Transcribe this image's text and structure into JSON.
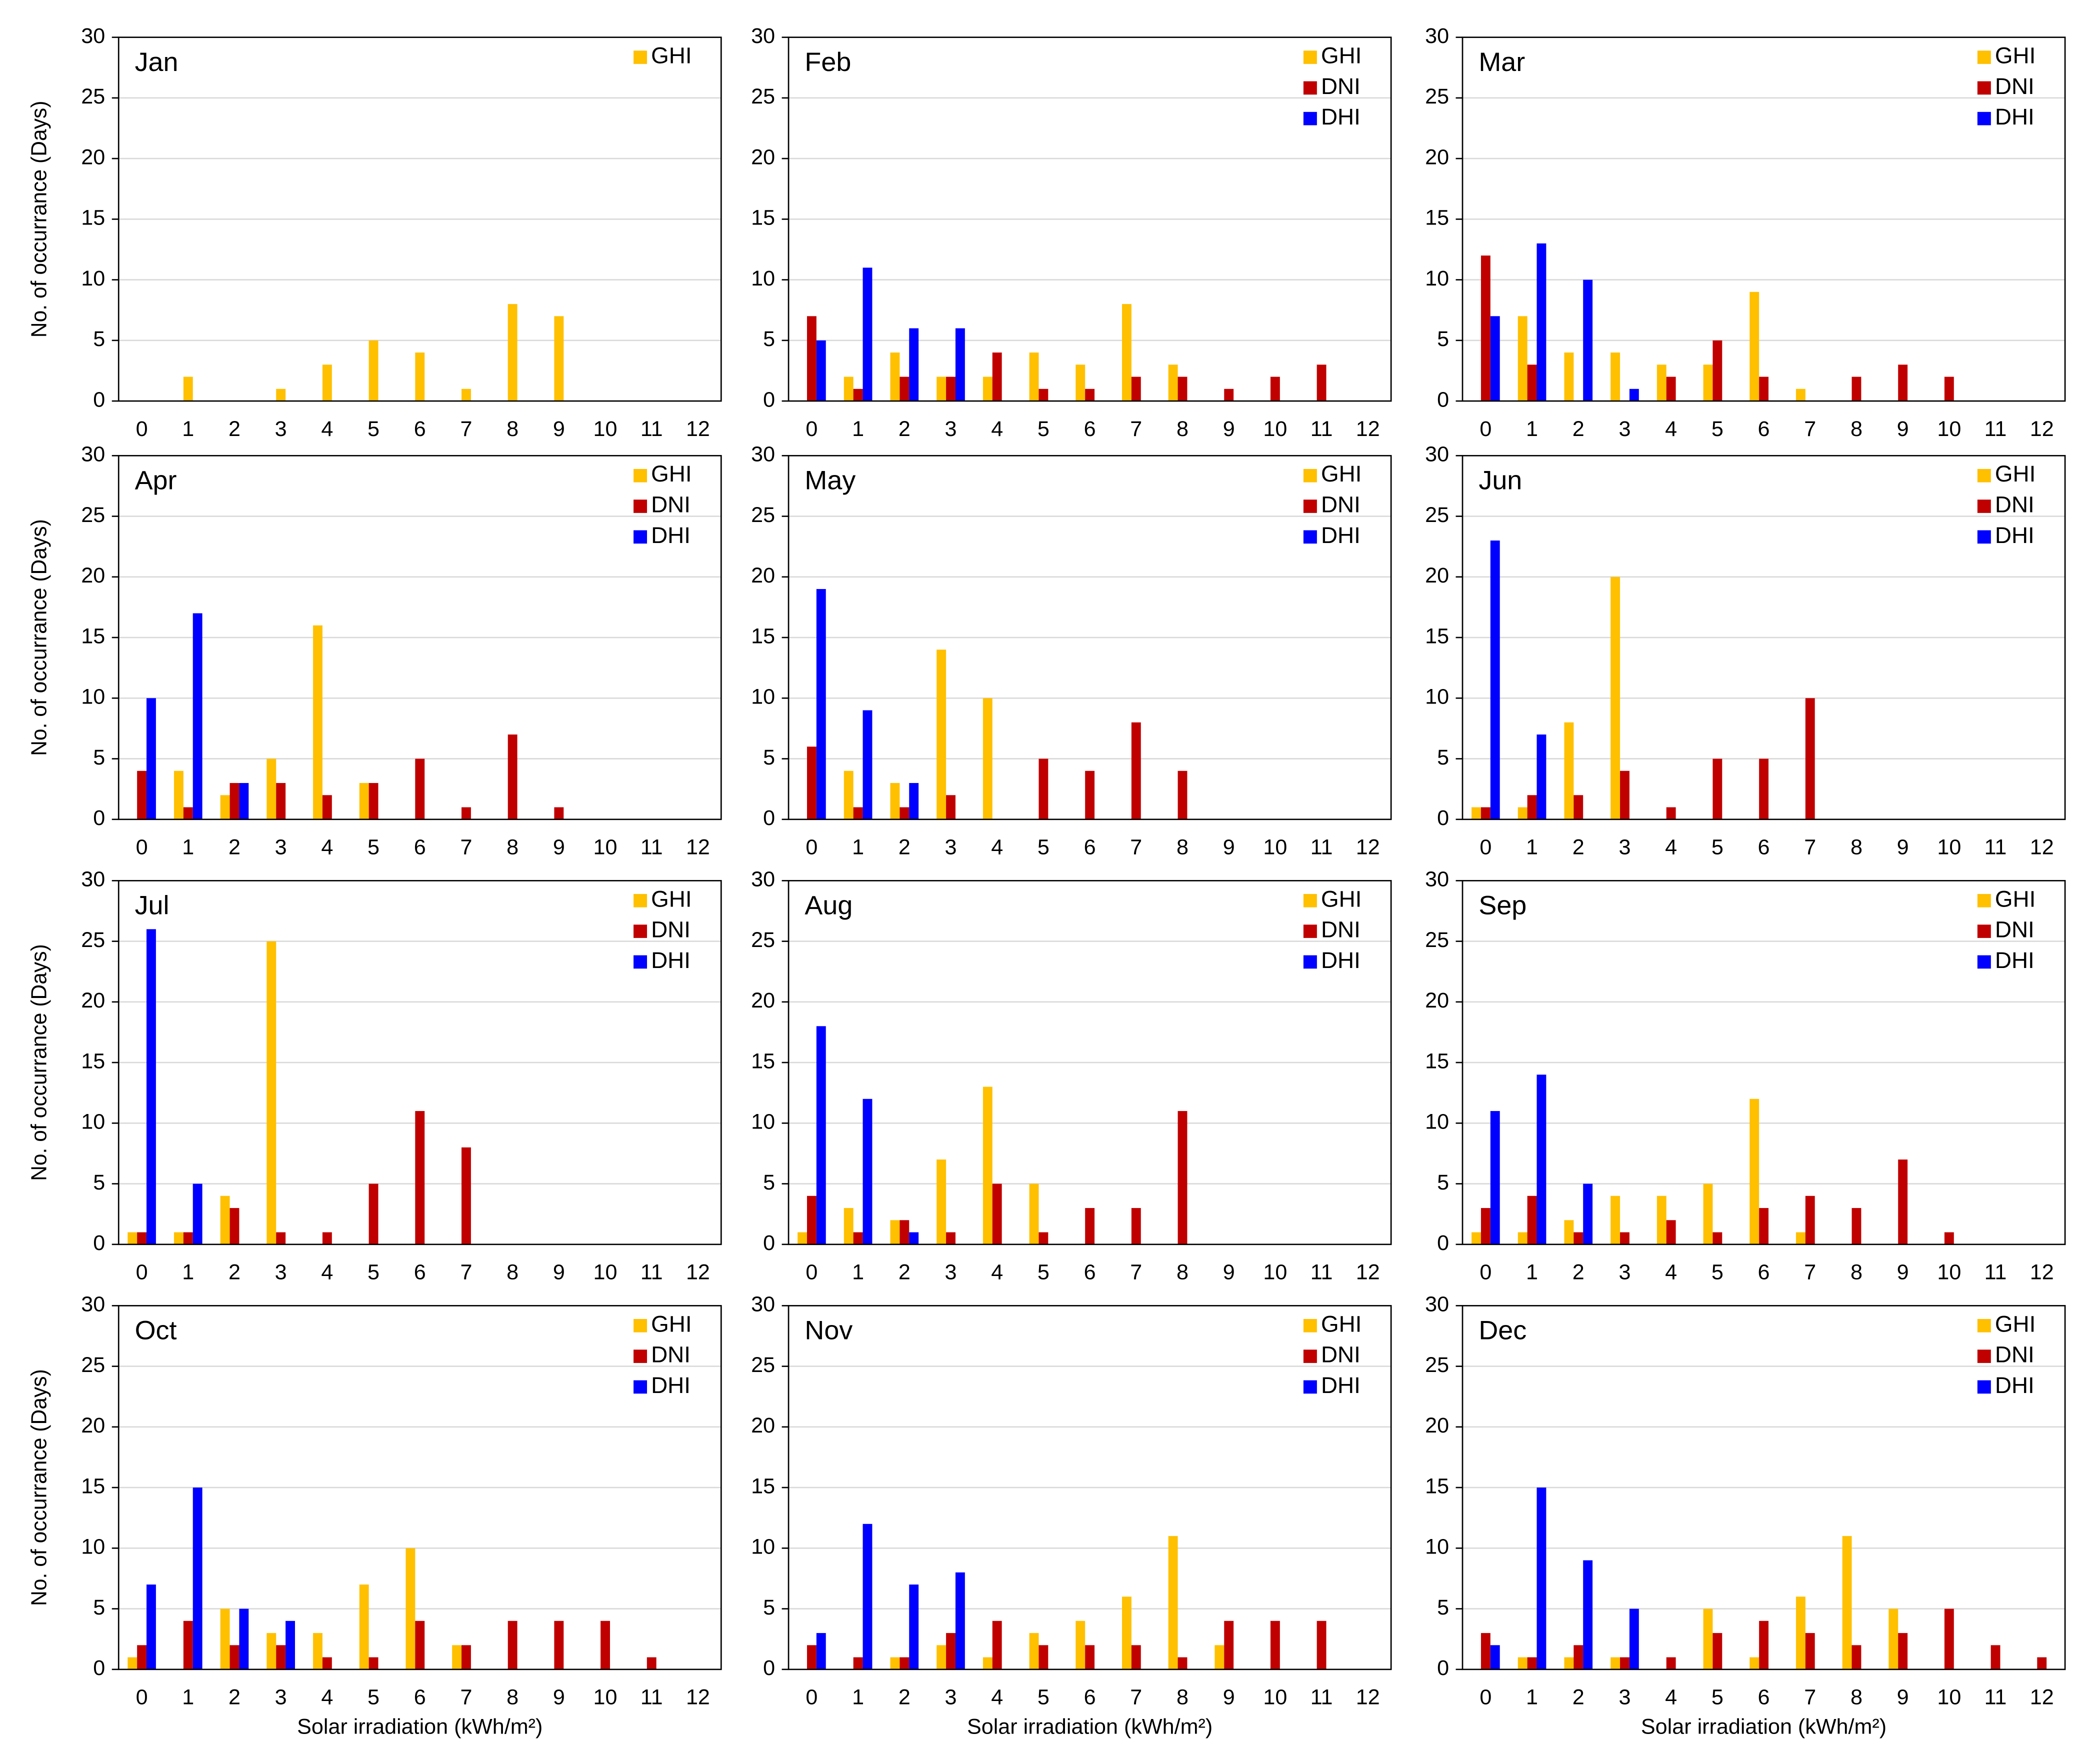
{
  "chart_data": [
    {
      "type": "bar",
      "title": "Jan",
      "categories": [
        0,
        1,
        2,
        3,
        4,
        5,
        6,
        7,
        8,
        9,
        10,
        11,
        12
      ],
      "series": [
        {
          "name": "GHI",
          "color": "#ffc000",
          "values": [
            0,
            2,
            0,
            1,
            3,
            5,
            4,
            1,
            8,
            7,
            0,
            0,
            0
          ]
        }
      ],
      "ylim": [
        0,
        30
      ],
      "yticks": [
        0,
        5,
        10,
        15,
        20,
        25,
        30
      ],
      "grid": true,
      "legend": "upper right",
      "ylabel": "No. of occurrance (Days)"
    },
    {
      "type": "bar",
      "title": "Feb",
      "categories": [
        0,
        1,
        2,
        3,
        4,
        5,
        6,
        7,
        8,
        9,
        10,
        11,
        12
      ],
      "series": [
        {
          "name": "GHI",
          "color": "#ffc000",
          "values": [
            0,
            2,
            4,
            2,
            2,
            4,
            3,
            8,
            3,
            0,
            0,
            0,
            0
          ]
        },
        {
          "name": "DNI",
          "color": "#c00000",
          "values": [
            7,
            1,
            2,
            2,
            4,
            1,
            1,
            2,
            2,
            1,
            2,
            3,
            0
          ]
        },
        {
          "name": "DHI",
          "color": "#0000ff",
          "values": [
            5,
            11,
            6,
            6,
            0,
            0,
            0,
            0,
            0,
            0,
            0,
            0,
            0
          ]
        }
      ],
      "ylim": [
        0,
        30
      ],
      "yticks": [
        0,
        5,
        10,
        15,
        20,
        25,
        30
      ],
      "grid": true,
      "legend": "upper right"
    },
    {
      "type": "bar",
      "title": "Mar",
      "categories": [
        0,
        1,
        2,
        3,
        4,
        5,
        6,
        7,
        8,
        9,
        10,
        11,
        12
      ],
      "series": [
        {
          "name": "GHI",
          "color": "#ffc000",
          "values": [
            0,
            7,
            4,
            4,
            3,
            3,
            9,
            1,
            0,
            0,
            0,
            0,
            0
          ]
        },
        {
          "name": "DNI",
          "color": "#c00000",
          "values": [
            12,
            3,
            0,
            0,
            2,
            5,
            2,
            0,
            2,
            3,
            2,
            0,
            0
          ]
        },
        {
          "name": "DHI",
          "color": "#0000ff",
          "values": [
            7,
            13,
            10,
            1,
            0,
            0,
            0,
            0,
            0,
            0,
            0,
            0,
            0
          ]
        }
      ],
      "ylim": [
        0,
        30
      ],
      "yticks": [
        0,
        5,
        10,
        15,
        20,
        25,
        30
      ],
      "grid": true,
      "legend": "upper right"
    },
    {
      "type": "bar",
      "title": "Apr",
      "categories": [
        0,
        1,
        2,
        3,
        4,
        5,
        6,
        7,
        8,
        9,
        10,
        11,
        12
      ],
      "series": [
        {
          "name": "GHI",
          "color": "#ffc000",
          "values": [
            0,
            4,
            2,
            5,
            16,
            3,
            0,
            0,
            0,
            0,
            0,
            0,
            0
          ]
        },
        {
          "name": "DNI",
          "color": "#c00000",
          "values": [
            4,
            1,
            3,
            3,
            2,
            3,
            5,
            1,
            7,
            1,
            0,
            0,
            0
          ]
        },
        {
          "name": "DHI",
          "color": "#0000ff",
          "values": [
            10,
            17,
            3,
            0,
            0,
            0,
            0,
            0,
            0,
            0,
            0,
            0,
            0
          ]
        }
      ],
      "ylim": [
        0,
        30
      ],
      "yticks": [
        0,
        5,
        10,
        15,
        20,
        25,
        30
      ],
      "grid": true,
      "legend": "upper right",
      "ylabel": "No. of occurrance (Days)"
    },
    {
      "type": "bar",
      "title": "May",
      "categories": [
        0,
        1,
        2,
        3,
        4,
        5,
        6,
        7,
        8,
        9,
        10,
        11,
        12
      ],
      "series": [
        {
          "name": "GHI",
          "color": "#ffc000",
          "values": [
            0,
            4,
            3,
            14,
            10,
            0,
            0,
            0,
            0,
            0,
            0,
            0,
            0
          ]
        },
        {
          "name": "DNI",
          "color": "#c00000",
          "values": [
            6,
            1,
            1,
            2,
            0,
            5,
            4,
            8,
            4,
            0,
            0,
            0,
            0
          ]
        },
        {
          "name": "DHI",
          "color": "#0000ff",
          "values": [
            19,
            9,
            3,
            0,
            0,
            0,
            0,
            0,
            0,
            0,
            0,
            0,
            0
          ]
        }
      ],
      "ylim": [
        0,
        30
      ],
      "yticks": [
        0,
        5,
        10,
        15,
        20,
        25,
        30
      ],
      "grid": true,
      "legend": "upper right"
    },
    {
      "type": "bar",
      "title": "Jun",
      "categories": [
        0,
        1,
        2,
        3,
        4,
        5,
        6,
        7,
        8,
        9,
        10,
        11,
        12
      ],
      "series": [
        {
          "name": "GHI",
          "color": "#ffc000",
          "values": [
            1,
            1,
            8,
            20,
            0,
            0,
            0,
            0,
            0,
            0,
            0,
            0,
            0
          ]
        },
        {
          "name": "DNI",
          "color": "#c00000",
          "values": [
            1,
            2,
            2,
            4,
            1,
            5,
            5,
            10,
            0,
            0,
            0,
            0,
            0
          ]
        },
        {
          "name": "DHI",
          "color": "#0000ff",
          "values": [
            23,
            7,
            0,
            0,
            0,
            0,
            0,
            0,
            0,
            0,
            0,
            0,
            0
          ]
        }
      ],
      "ylim": [
        0,
        30
      ],
      "yticks": [
        0,
        5,
        10,
        15,
        20,
        25,
        30
      ],
      "grid": true,
      "legend": "upper right"
    },
    {
      "type": "bar",
      "title": "Jul",
      "categories": [
        0,
        1,
        2,
        3,
        4,
        5,
        6,
        7,
        8,
        9,
        10,
        11,
        12
      ],
      "series": [
        {
          "name": "GHI",
          "color": "#ffc000",
          "values": [
            1,
            1,
            4,
            25,
            0,
            0,
            0,
            0,
            0,
            0,
            0,
            0,
            0
          ]
        },
        {
          "name": "DNI",
          "color": "#c00000",
          "values": [
            1,
            1,
            3,
            1,
            1,
            5,
            11,
            8,
            0,
            0,
            0,
            0,
            0
          ]
        },
        {
          "name": "DHI",
          "color": "#0000ff",
          "values": [
            26,
            5,
            0,
            0,
            0,
            0,
            0,
            0,
            0,
            0,
            0,
            0,
            0
          ]
        }
      ],
      "ylim": [
        0,
        30
      ],
      "yticks": [
        0,
        5,
        10,
        15,
        20,
        25,
        30
      ],
      "grid": true,
      "legend": "upper right",
      "ylabel": "No. of occurrance (Days)"
    },
    {
      "type": "bar",
      "title": "Aug",
      "categories": [
        0,
        1,
        2,
        3,
        4,
        5,
        6,
        7,
        8,
        9,
        10,
        11,
        12
      ],
      "series": [
        {
          "name": "GHI",
          "color": "#ffc000",
          "values": [
            1,
            3,
            2,
            7,
            13,
            5,
            0,
            0,
            0,
            0,
            0,
            0,
            0
          ]
        },
        {
          "name": "DNI",
          "color": "#c00000",
          "values": [
            4,
            1,
            2,
            1,
            5,
            1,
            3,
            3,
            11,
            0,
            0,
            0,
            0
          ]
        },
        {
          "name": "DHI",
          "color": "#0000ff",
          "values": [
            18,
            12,
            1,
            0,
            0,
            0,
            0,
            0,
            0,
            0,
            0,
            0,
            0
          ]
        }
      ],
      "ylim": [
        0,
        30
      ],
      "yticks": [
        0,
        5,
        10,
        15,
        20,
        25,
        30
      ],
      "grid": true,
      "legend": "upper right"
    },
    {
      "type": "bar",
      "title": "Sep",
      "categories": [
        0,
        1,
        2,
        3,
        4,
        5,
        6,
        7,
        8,
        9,
        10,
        11,
        12
      ],
      "series": [
        {
          "name": "GHI",
          "color": "#ffc000",
          "values": [
            1,
            1,
            2,
            4,
            4,
            5,
            12,
            1,
            0,
            0,
            0,
            0,
            0
          ]
        },
        {
          "name": "DNI",
          "color": "#c00000",
          "values": [
            3,
            4,
            1,
            1,
            2,
            1,
            3,
            4,
            3,
            7,
            1,
            0,
            0
          ]
        },
        {
          "name": "DHI",
          "color": "#0000ff",
          "values": [
            11,
            14,
            5,
            0,
            0,
            0,
            0,
            0,
            0,
            0,
            0,
            0,
            0
          ]
        }
      ],
      "ylim": [
        0,
        30
      ],
      "yticks": [
        0,
        5,
        10,
        15,
        20,
        25,
        30
      ],
      "grid": true,
      "legend": "upper right"
    },
    {
      "type": "bar",
      "title": "Oct",
      "categories": [
        0,
        1,
        2,
        3,
        4,
        5,
        6,
        7,
        8,
        9,
        10,
        11,
        12
      ],
      "series": [
        {
          "name": "GHI",
          "color": "#ffc000",
          "values": [
            1,
            0,
            5,
            3,
            3,
            7,
            10,
            2,
            0,
            0,
            0,
            0,
            0
          ]
        },
        {
          "name": "DNI",
          "color": "#c00000",
          "values": [
            2,
            4,
            2,
            2,
            1,
            1,
            4,
            2,
            4,
            4,
            4,
            1,
            0
          ]
        },
        {
          "name": "DHI",
          "color": "#0000ff",
          "values": [
            7,
            15,
            5,
            4,
            0,
            0,
            0,
            0,
            0,
            0,
            0,
            0,
            0
          ]
        }
      ],
      "ylim": [
        0,
        30
      ],
      "yticks": [
        0,
        5,
        10,
        15,
        20,
        25,
        30
      ],
      "grid": true,
      "legend": "upper right",
      "ylabel": "No. of occurrance (Days)",
      "xlabel": "Solar irradiation (kWh/m²)"
    },
    {
      "type": "bar",
      "title": "Nov",
      "categories": [
        0,
        1,
        2,
        3,
        4,
        5,
        6,
        7,
        8,
        9,
        10,
        11,
        12
      ],
      "series": [
        {
          "name": "GHI",
          "color": "#ffc000",
          "values": [
            0,
            0,
            1,
            2,
            1,
            3,
            4,
            6,
            11,
            2,
            0,
            0,
            0
          ]
        },
        {
          "name": "DNI",
          "color": "#c00000",
          "values": [
            2,
            1,
            1,
            3,
            4,
            2,
            2,
            2,
            1,
            4,
            4,
            4,
            0
          ]
        },
        {
          "name": "DHI",
          "color": "#0000ff",
          "values": [
            3,
            12,
            7,
            8,
            0,
            0,
            0,
            0,
            0,
            0,
            0,
            0,
            0
          ]
        }
      ],
      "ylim": [
        0,
        30
      ],
      "yticks": [
        0,
        5,
        10,
        15,
        20,
        25,
        30
      ],
      "grid": true,
      "legend": "upper right",
      "xlabel": "Solar irradiation (kWh/m²)"
    },
    {
      "type": "bar",
      "title": "Dec",
      "categories": [
        0,
        1,
        2,
        3,
        4,
        5,
        6,
        7,
        8,
        9,
        10,
        11,
        12
      ],
      "series": [
        {
          "name": "GHI",
          "color": "#ffc000",
          "values": [
            0,
            1,
            1,
            1,
            0,
            5,
            1,
            6,
            11,
            5,
            0,
            0,
            0
          ]
        },
        {
          "name": "DNI",
          "color": "#c00000",
          "values": [
            3,
            1,
            2,
            1,
            1,
            3,
            4,
            3,
            2,
            3,
            5,
            2,
            1
          ]
        },
        {
          "name": "DHI",
          "color": "#0000ff",
          "values": [
            2,
            15,
            9,
            5,
            0,
            0,
            0,
            0,
            0,
            0,
            0,
            0,
            0
          ]
        }
      ],
      "ylim": [
        0,
        30
      ],
      "yticks": [
        0,
        5,
        10,
        15,
        20,
        25,
        30
      ],
      "grid": true,
      "legend": "upper right",
      "xlabel": "Solar irradiation (kWh/m²)"
    }
  ]
}
